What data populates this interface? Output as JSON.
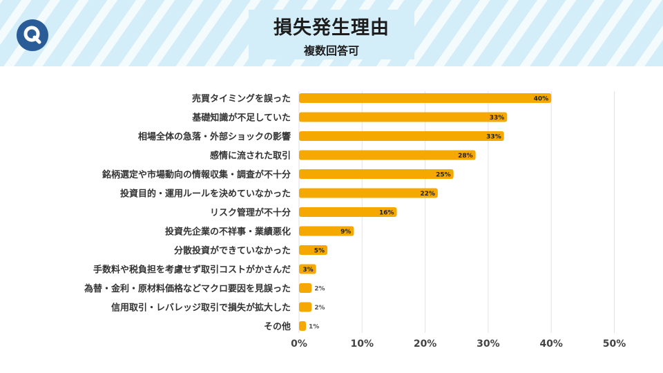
{
  "header": {
    "logo_letter": "Q",
    "title": "損失発生理由",
    "subtitle": "複数回答可"
  },
  "colors": {
    "bar": "#f5a800",
    "header_bg": "#d4eef9",
    "logo": "#2a5d98"
  },
  "chart_data": {
    "type": "bar",
    "orientation": "horizontal",
    "title": "損失発生理由",
    "subtitle": "複数回答可",
    "xlabel": "",
    "ylabel": "",
    "xlim": [
      0,
      50
    ],
    "x_ticks": [
      "0%",
      "10%",
      "20%",
      "30%",
      "40%",
      "50%"
    ],
    "grid": true,
    "categories": [
      "売買タイミングを誤った",
      "基礎知識が不足していた",
      "相場全体の急落・外部ショックの影響",
      "感情に流された取引",
      "銘柄選定や市場動向の情報収集・調査が不十分",
      "投資目的・運用ルールを決めていなかった",
      "リスク管理が不十分",
      "投資先企業の不祥事・業績悪化",
      "分散投資ができていなかった",
      "手数料や税負担を考慮せず取引コストがかさんだ",
      "為替・金利・原材料価格などマクロ要因を見誤った",
      "信用取引・レバレッジ取引で損失が拡大した",
      "その他"
    ],
    "values": [
      40,
      33,
      33,
      28,
      25,
      22,
      16,
      9,
      5,
      3,
      2,
      2,
      1
    ],
    "value_labels": [
      "40%",
      "33%",
      "33%",
      "28%",
      "25%",
      "22%",
      "16%",
      "9%",
      "5%",
      "3%",
      "2%",
      "2%",
      "1%"
    ],
    "bar_lengths": [
      40,
      33,
      32.5,
      28,
      24.5,
      22,
      15.5,
      8.7,
      4.5,
      2.7,
      2.0,
      2.0,
      1.1
    ]
  }
}
